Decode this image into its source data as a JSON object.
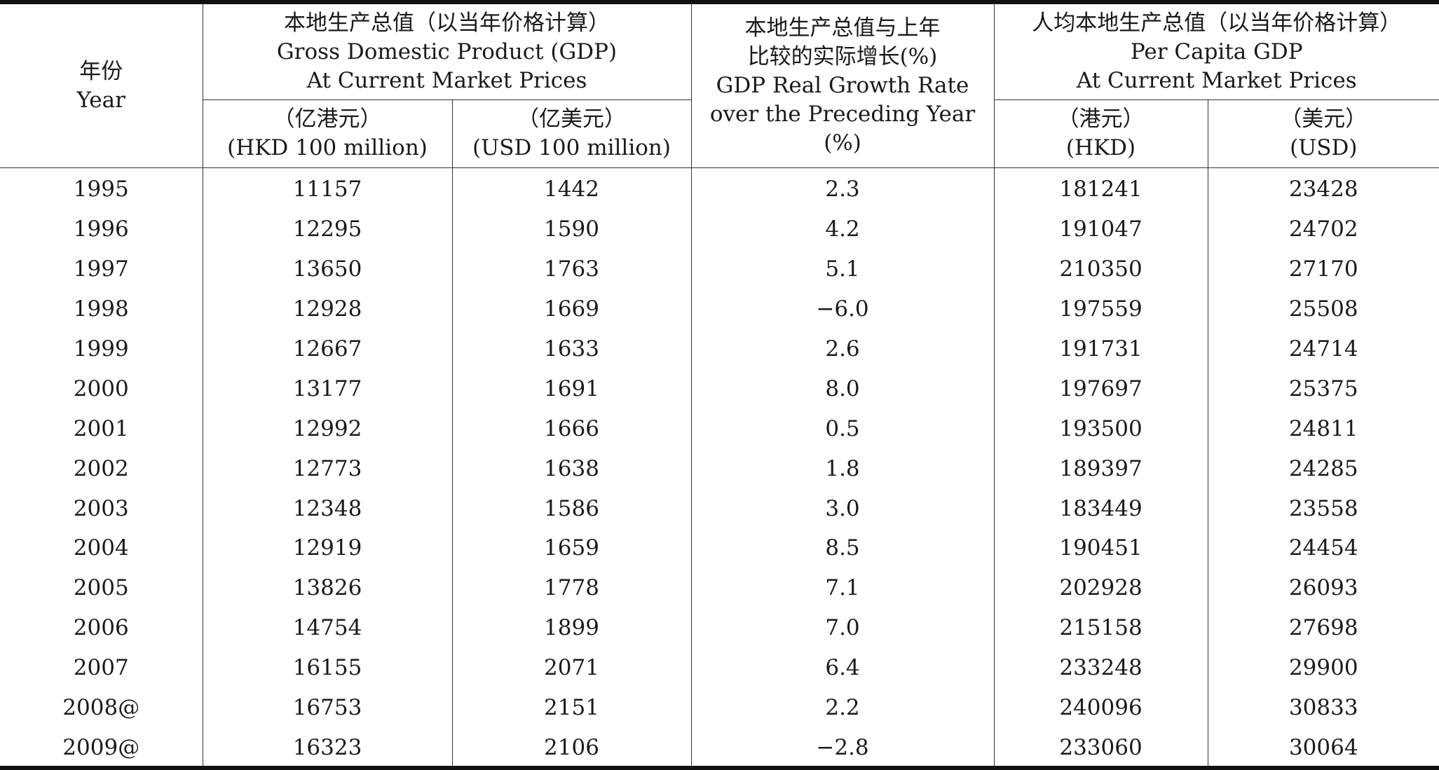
{
  "header": {
    "year": {
      "zh": "年份",
      "en": "Year"
    },
    "gdp": {
      "zh": "本地生产总值（以当年价格计算）",
      "en1": "Gross Domestic Product (GDP)",
      "en2": "At Current Market Prices",
      "hkd": {
        "zh": "（亿港元）",
        "en": "(HKD 100 million)"
      },
      "usd": {
        "zh": "（亿美元）",
        "en": "(USD 100 million)"
      }
    },
    "growth": {
      "zh1": "本地生产总值与上年",
      "zh2": "比较的实际增长(%)",
      "en1": "GDP Real Growth Rate",
      "en2": "over the Preceding Year",
      "en3": "(%)"
    },
    "per_capita": {
      "zh": "人均本地生产总值（以当年价格计算）",
      "en1": "Per Capita GDP",
      "en2": "At Current Market Prices",
      "hkd": {
        "zh": "（港元）",
        "en": "(HKD)"
      },
      "usd": {
        "zh": "（美元）",
        "en": "(USD)"
      }
    }
  },
  "rows": [
    {
      "year": "1995",
      "gdp_hkd": "11157",
      "gdp_usd": "1442",
      "growth": "2.3",
      "pc_hkd": "181241",
      "pc_usd": "23428"
    },
    {
      "year": "1996",
      "gdp_hkd": "12295",
      "gdp_usd": "1590",
      "growth": "4.2",
      "pc_hkd": "191047",
      "pc_usd": "24702"
    },
    {
      "year": "1997",
      "gdp_hkd": "13650",
      "gdp_usd": "1763",
      "growth": "5.1",
      "pc_hkd": "210350",
      "pc_usd": "27170"
    },
    {
      "year": "1998",
      "gdp_hkd": "12928",
      "gdp_usd": "1669",
      "growth": "−6.0",
      "pc_hkd": "197559",
      "pc_usd": "25508"
    },
    {
      "year": "1999",
      "gdp_hkd": "12667",
      "gdp_usd": "1633",
      "growth": "2.6",
      "pc_hkd": "191731",
      "pc_usd": "24714"
    },
    {
      "year": "2000",
      "gdp_hkd": "13177",
      "gdp_usd": "1691",
      "growth": "8.0",
      "pc_hkd": "197697",
      "pc_usd": "25375"
    },
    {
      "year": "2001",
      "gdp_hkd": "12992",
      "gdp_usd": "1666",
      "growth": "0.5",
      "pc_hkd": "193500",
      "pc_usd": "24811"
    },
    {
      "year": "2002",
      "gdp_hkd": "12773",
      "gdp_usd": "1638",
      "growth": "1.8",
      "pc_hkd": "189397",
      "pc_usd": "24285"
    },
    {
      "year": "2003",
      "gdp_hkd": "12348",
      "gdp_usd": "1586",
      "growth": "3.0",
      "pc_hkd": "183449",
      "pc_usd": "23558"
    },
    {
      "year": "2004",
      "gdp_hkd": "12919",
      "gdp_usd": "1659",
      "growth": "8.5",
      "pc_hkd": "190451",
      "pc_usd": "24454"
    },
    {
      "year": "2005",
      "gdp_hkd": "13826",
      "gdp_usd": "1778",
      "growth": "7.1",
      "pc_hkd": "202928",
      "pc_usd": "26093"
    },
    {
      "year": "2006",
      "gdp_hkd": "14754",
      "gdp_usd": "1899",
      "growth": "7.0",
      "pc_hkd": "215158",
      "pc_usd": "27698"
    },
    {
      "year": "2007",
      "gdp_hkd": "16155",
      "gdp_usd": "2071",
      "growth": "6.4",
      "pc_hkd": "233248",
      "pc_usd": "29900"
    },
    {
      "year": "2008@",
      "gdp_hkd": "16753",
      "gdp_usd": "2151",
      "growth": "2.2",
      "pc_hkd": "240096",
      "pc_usd": "30833"
    },
    {
      "year": "2009@",
      "gdp_hkd": "16323",
      "gdp_usd": "2106",
      "growth": "−2.8",
      "pc_hkd": "233060",
      "pc_usd": "30064"
    }
  ]
}
